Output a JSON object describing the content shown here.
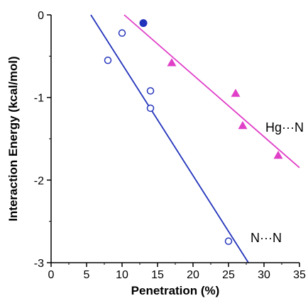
{
  "chart_data": {
    "type": "scatter",
    "xlabel": "Penetration (%)",
    "ylabel": "Interaction Energy (kcal/mol)",
    "xlim": [
      0,
      35
    ],
    "ylim": [
      -3,
      0
    ],
    "x_ticks": [
      0,
      5,
      10,
      15,
      20,
      25,
      30,
      35
    ],
    "y_ticks": [
      0,
      -1,
      -2,
      -3
    ],
    "x_tick_labels": [
      "0",
      "5",
      "10",
      "15",
      "20",
      "25",
      "30",
      "35"
    ],
    "y_tick_labels": [
      "0",
      "-1",
      "-2",
      "-3"
    ],
    "grid": false,
    "series": [
      {
        "name": "N···N",
        "color": "#2233bb",
        "marker": "open-circle",
        "points": [
          [
            8,
            -0.55
          ],
          [
            10,
            -0.22
          ],
          [
            14,
            -0.92
          ],
          [
            14,
            -1.13
          ],
          [
            25,
            -2.74
          ]
        ],
        "fit_line": [
          [
            5.6,
            0
          ],
          [
            27.8,
            -3
          ]
        ]
      },
      {
        "name": "Hg···N",
        "color": "#e040c8",
        "marker": "filled-triangle",
        "points": [
          [
            17,
            -0.58
          ],
          [
            26,
            -0.95
          ],
          [
            27,
            -1.34
          ],
          [
            32,
            -1.7
          ]
        ],
        "fit_line": [
          [
            10.3,
            0
          ],
          [
            35,
            -1.85
          ]
        ]
      },
      {
        "color": "#2233bb",
        "marker": "filled-circle",
        "points": [
          [
            13,
            -0.1
          ]
        ]
      }
    ]
  }
}
